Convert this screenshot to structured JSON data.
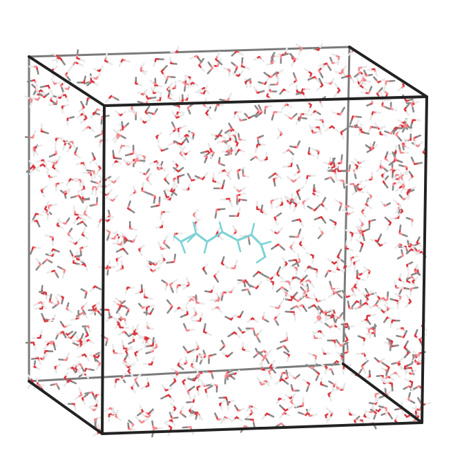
{
  "scene": {
    "subject": "water-box-with-solute",
    "colors": {
      "background": "#ffffff",
      "box_front": "#222222",
      "box_back": "#7a7a7a",
      "oxygen": "#d9363e",
      "oxygen_light": "#f08a8f",
      "hydrogen": "#e8e8e8",
      "hydrogen_dark": "#8a8a8a",
      "solute": "#7ed3d6"
    },
    "counts": {
      "water_molecules": 900
    }
  }
}
